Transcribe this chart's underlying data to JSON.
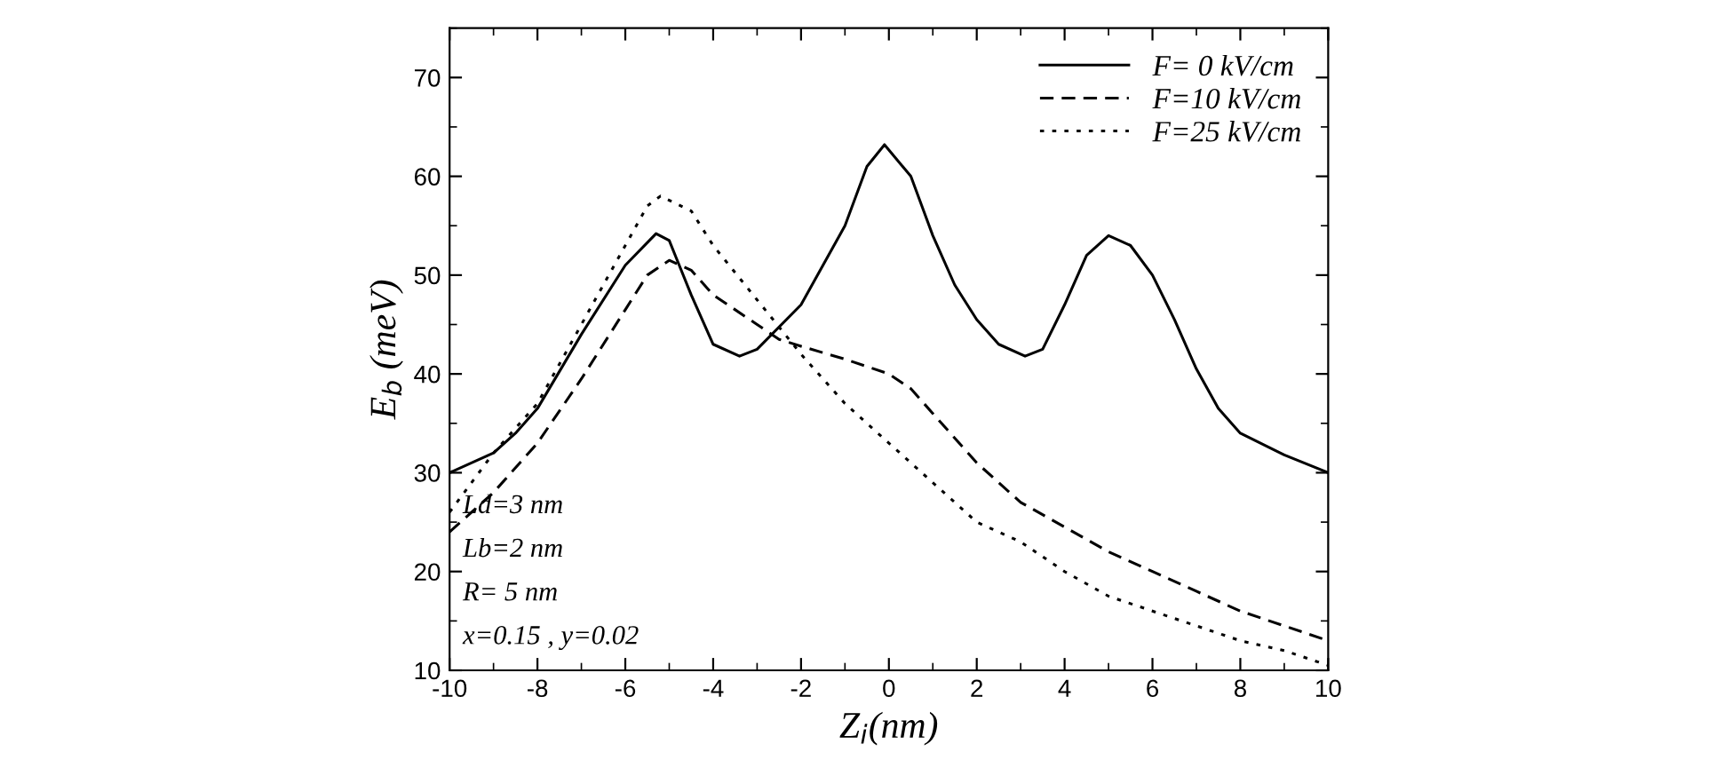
{
  "chart_data": {
    "type": "line",
    "xlabel": "Z$_{i}$(nm)",
    "ylabel": "E$_{b}$ (meV)",
    "xlim": [
      -10,
      10
    ],
    "ylim": [
      10,
      75
    ],
    "xticks": [
      -10,
      -8,
      -6,
      -4,
      -2,
      0,
      2,
      4,
      6,
      8,
      10
    ],
    "yticks": [
      10,
      20,
      30,
      40,
      50,
      60,
      70
    ],
    "grid": false,
    "legend": "top right",
    "marker": "none",
    "series": [
      {
        "name": "F= 0 kV/cm",
        "color": "#000000",
        "line_style": "solid",
        "x": [
          -10,
          -9,
          -8.5,
          -8,
          -7,
          -6,
          -5.3,
          -5,
          -4.5,
          -4,
          -3.4,
          -3,
          -2,
          -1,
          -0.5,
          -0.1,
          0.5,
          1,
          1.5,
          2,
          2.5,
          3.1,
          3.5,
          4,
          4.5,
          5,
          5.5,
          6,
          6.5,
          7,
          7.5,
          8,
          9,
          10
        ],
        "values": [
          30,
          32,
          34,
          36.5,
          44,
          51,
          54.2,
          53.5,
          48,
          43,
          41.8,
          42.5,
          47,
          55,
          61,
          63.2,
          60,
          54,
          49,
          45.5,
          43,
          41.8,
          42.5,
          47,
          52,
          54,
          53,
          50,
          45.5,
          40.5,
          36.5,
          34,
          31.8,
          30
        ]
      },
      {
        "name": "F=10 kV/cm",
        "color": "#000000",
        "line_style": "dashed",
        "x": [
          -10,
          -9,
          -8,
          -7,
          -6,
          -5.5,
          -5,
          -4.5,
          -4,
          -3,
          -2.5,
          -2,
          -1,
          0,
          0.5,
          1,
          2,
          3,
          4,
          5,
          6,
          7,
          8,
          9,
          10
        ],
        "values": [
          24,
          28,
          33,
          39.5,
          46.5,
          50,
          51.5,
          50.5,
          48,
          45,
          43.5,
          42.8,
          41.5,
          40,
          38.5,
          36,
          31,
          27,
          24.5,
          22,
          20,
          18,
          16,
          14.5,
          13
        ]
      },
      {
        "name": "F=25 kV/cm",
        "color": "#000000",
        "line_style": "dotted",
        "x": [
          -10,
          -9.5,
          -9,
          -8,
          -7,
          -6,
          -5.5,
          -5.2,
          -4.5,
          -4,
          -3,
          -2,
          -1,
          0,
          1,
          2,
          3,
          4,
          5,
          6,
          7,
          8,
          9,
          10
        ],
        "values": [
          26,
          29,
          32,
          37,
          45,
          53,
          57,
          58,
          56.5,
          53,
          47.5,
          42,
          37,
          33,
          29,
          25,
          23,
          20,
          17.5,
          16,
          14.5,
          13,
          12,
          10.5
        ]
      }
    ],
    "annotations": [
      "Ld=3 nm",
      "Lb=2 nm",
      "R= 5 nm",
      "x=0.15 , y=0.02"
    ]
  }
}
